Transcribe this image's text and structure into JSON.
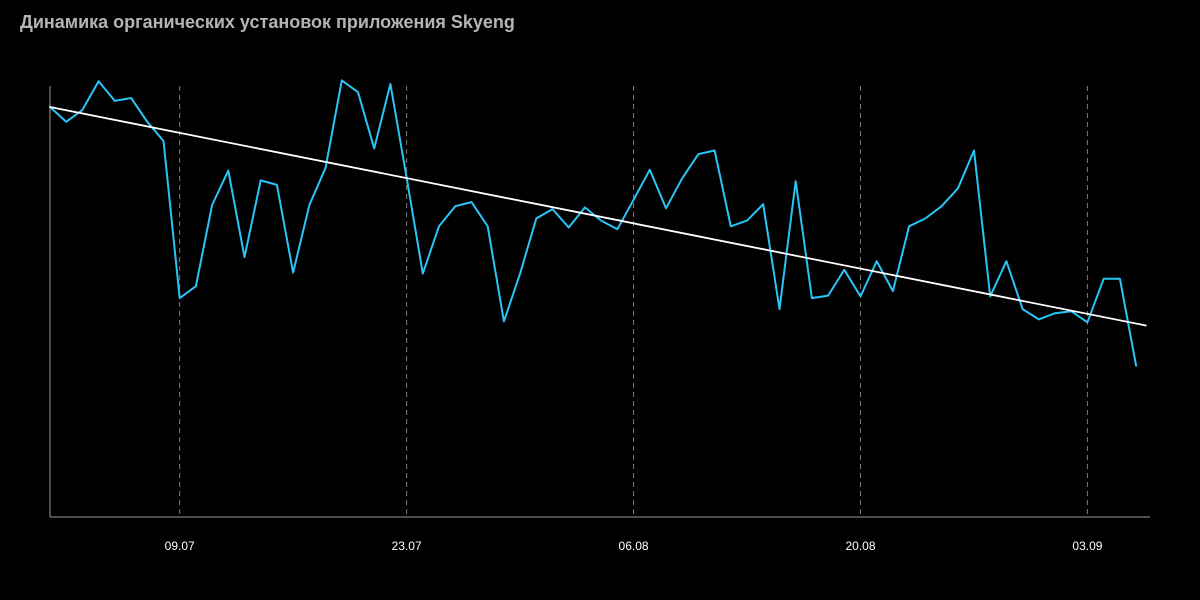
{
  "chart_data": {
    "type": "line",
    "title": "Динамика органических установок приложения Skyeng",
    "xlabel": "",
    "ylabel": "",
    "x_ticks": [
      {
        "label": "09.07",
        "day": 8
      },
      {
        "label": "23.07",
        "day": 22
      },
      {
        "label": "06.08",
        "day": 36
      },
      {
        "label": "20.08",
        "day": 50
      },
      {
        "label": "03.09",
        "day": 64
      }
    ],
    "x_range": [
      0,
      68
    ],
    "ylim": [
      0,
      100
    ],
    "grid": {
      "vertical_dashed": true,
      "horizontal": false
    },
    "series": [
      {
        "color": "#29c5f6",
        "values": [
          [
            0,
            100
          ],
          [
            1,
            96.4
          ],
          [
            2,
            99.3
          ],
          [
            3,
            106.3
          ],
          [
            4,
            101.5
          ],
          [
            5,
            102.2
          ],
          [
            6,
            96.4
          ],
          [
            7,
            91.7
          ],
          [
            8,
            53.4
          ],
          [
            9,
            56.3
          ],
          [
            10,
            76.1
          ],
          [
            11,
            84.5
          ],
          [
            12,
            63.4
          ],
          [
            13,
            82.1
          ],
          [
            14,
            81.0
          ],
          [
            15,
            59.6
          ],
          [
            16,
            76.1
          ],
          [
            17,
            85.2
          ],
          [
            18,
            106.5
          ],
          [
            19,
            103.6
          ],
          [
            20,
            89.9
          ],
          [
            21,
            105.6
          ],
          [
            22,
            82.8
          ],
          [
            23,
            59.4
          ],
          [
            24,
            70.9
          ],
          [
            25,
            75.8
          ],
          [
            26,
            76.8
          ],
          [
            27,
            70.9
          ],
          [
            28,
            47.7
          ],
          [
            29,
            59.4
          ],
          [
            30,
            72.8
          ],
          [
            31,
            75.1
          ],
          [
            32,
            70.6
          ],
          [
            33,
            75.5
          ],
          [
            34,
            72.3
          ],
          [
            35,
            70.2
          ],
          [
            36,
            77.4
          ],
          [
            37,
            84.7
          ],
          [
            38,
            75.3
          ],
          [
            39,
            82.6
          ],
          [
            40,
            88.5
          ],
          [
            41,
            89.4
          ],
          [
            42,
            70.9
          ],
          [
            43,
            72.3
          ],
          [
            44,
            76.3
          ],
          [
            45,
            50.7
          ],
          [
            46,
            81.9
          ],
          [
            47,
            53.4
          ],
          [
            48,
            54.0
          ],
          [
            49,
            60.3
          ],
          [
            50,
            53.8
          ],
          [
            51,
            62.4
          ],
          [
            52,
            55.1
          ],
          [
            53,
            70.9
          ],
          [
            54,
            72.8
          ],
          [
            55,
            75.8
          ],
          [
            56,
            80.1
          ],
          [
            57,
            89.4
          ],
          [
            58,
            53.8
          ],
          [
            59,
            62.4
          ],
          [
            60,
            50.7
          ],
          [
            61,
            48.2
          ],
          [
            62,
            49.7
          ],
          [
            63,
            50.2
          ],
          [
            64,
            47.5
          ],
          [
            65,
            58.1
          ],
          [
            66,
            58.1
          ],
          [
            67,
            36.9
          ]
        ]
      },
      {
        "color": "#ffffff",
        "values": [
          [
            0,
            100
          ],
          [
            67.6,
            46.7
          ]
        ]
      }
    ]
  }
}
